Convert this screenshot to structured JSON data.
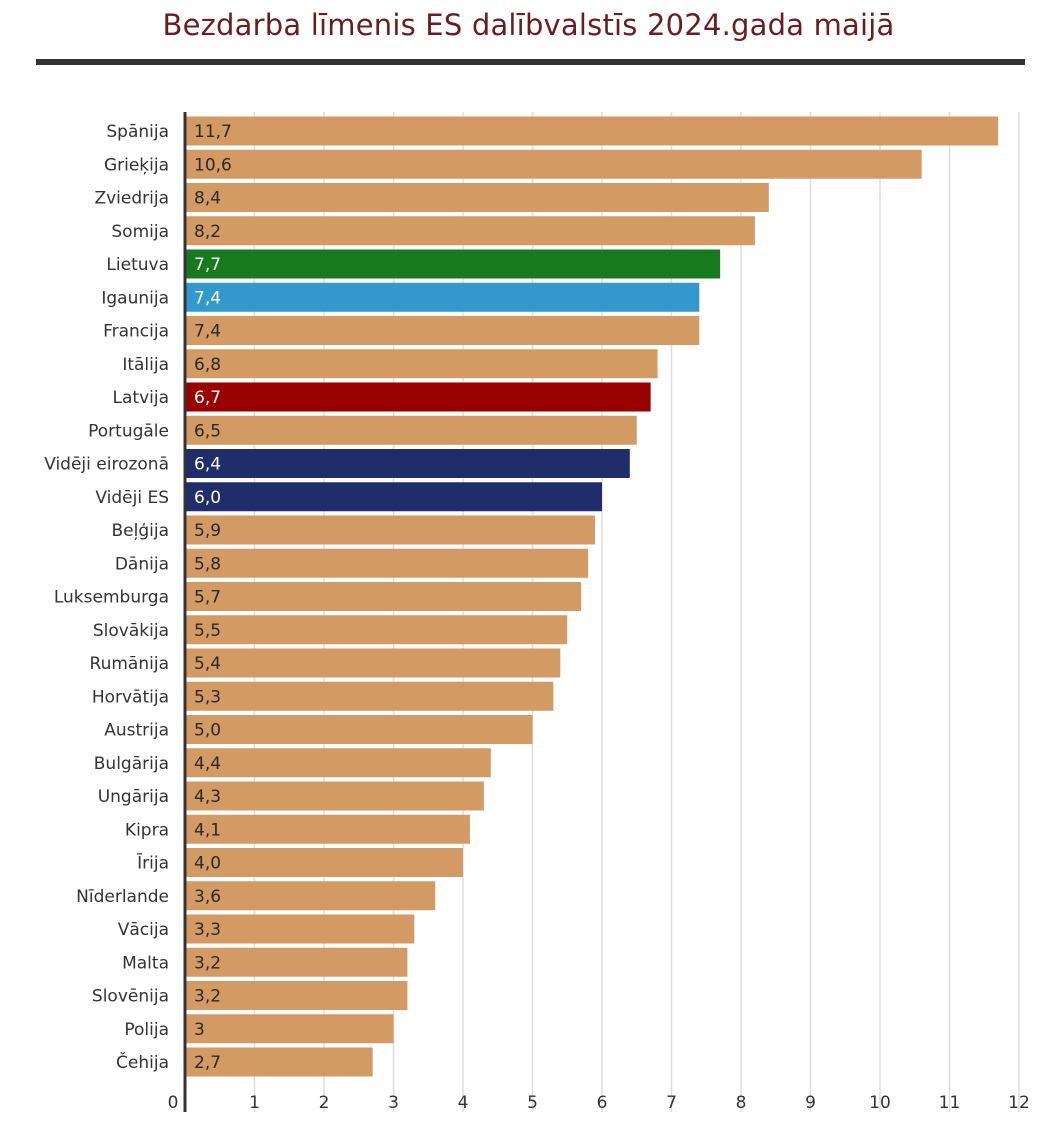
{
  "chart_data": {
    "type": "bar",
    "orientation": "horizontal",
    "title": "Bezdarba līmenis ES dalībvalstīs 2024.gada maijā",
    "xlabel": "",
    "ylabel": "",
    "xlim": [
      0,
      12
    ],
    "ticks": [
      0,
      1,
      2,
      3,
      4,
      5,
      6,
      7,
      8,
      9,
      10,
      11,
      12
    ],
    "grid": true,
    "legend": "none",
    "default_color": "#d39a63",
    "bars": [
      {
        "category": "Spānija",
        "value": 11.7,
        "label": "11,7"
      },
      {
        "category": "Grieķija",
        "value": 10.6,
        "label": "10,6"
      },
      {
        "category": "Zviedrija",
        "value": 8.4,
        "label": "8,4"
      },
      {
        "category": "Somija",
        "value": 8.2,
        "label": "8,2"
      },
      {
        "category": "Lietuva",
        "value": 7.7,
        "label": "7,7",
        "color": "#177a1e"
      },
      {
        "category": "Igaunija",
        "value": 7.4,
        "label": "7,4",
        "color": "#3399cc"
      },
      {
        "category": "Francija",
        "value": 7.4,
        "label": "7,4"
      },
      {
        "category": "Itālija",
        "value": 6.8,
        "label": "6,8"
      },
      {
        "category": "Latvija",
        "value": 6.7,
        "label": "6,7",
        "color": "#990000"
      },
      {
        "category": "Portugāle",
        "value": 6.5,
        "label": "6,5"
      },
      {
        "category": "Vidēji eirozonā",
        "value": 6.4,
        "label": "6,4",
        "color": "#1f2e6b"
      },
      {
        "category": "Vidēji ES",
        "value": 6.0,
        "label": "6,0",
        "color": "#1f2e6b"
      },
      {
        "category": "Beļģija",
        "value": 5.9,
        "label": "5,9"
      },
      {
        "category": "Dānija",
        "value": 5.8,
        "label": "5,8"
      },
      {
        "category": "Luksemburga",
        "value": 5.7,
        "label": "5,7"
      },
      {
        "category": "Slovākija",
        "value": 5.5,
        "label": "5,5"
      },
      {
        "category": "Rumānija",
        "value": 5.4,
        "label": "5,4"
      },
      {
        "category": "Horvātija",
        "value": 5.3,
        "label": "5,3"
      },
      {
        "category": "Austrija",
        "value": 5.0,
        "label": "5,0"
      },
      {
        "category": "Bulgārija",
        "value": 4.4,
        "label": "4,4"
      },
      {
        "category": "Ungārija",
        "value": 4.3,
        "label": "4,3"
      },
      {
        "category": "Kipra",
        "value": 4.1,
        "label": "4,1"
      },
      {
        "category": "Īrija",
        "value": 4.0,
        "label": "4,0"
      },
      {
        "category": "Nīderlande",
        "value": 3.6,
        "label": "3,6"
      },
      {
        "category": "Vācija",
        "value": 3.3,
        "label": "3,3"
      },
      {
        "category": "Malta",
        "value": 3.2,
        "label": "3,2"
      },
      {
        "category": "Slovēnija",
        "value": 3.2,
        "label": "3,2"
      },
      {
        "category": "Polija",
        "value": 3.0,
        "label": "3"
      },
      {
        "category": "Čehija",
        "value": 2.7,
        "label": "2,7"
      }
    ]
  }
}
